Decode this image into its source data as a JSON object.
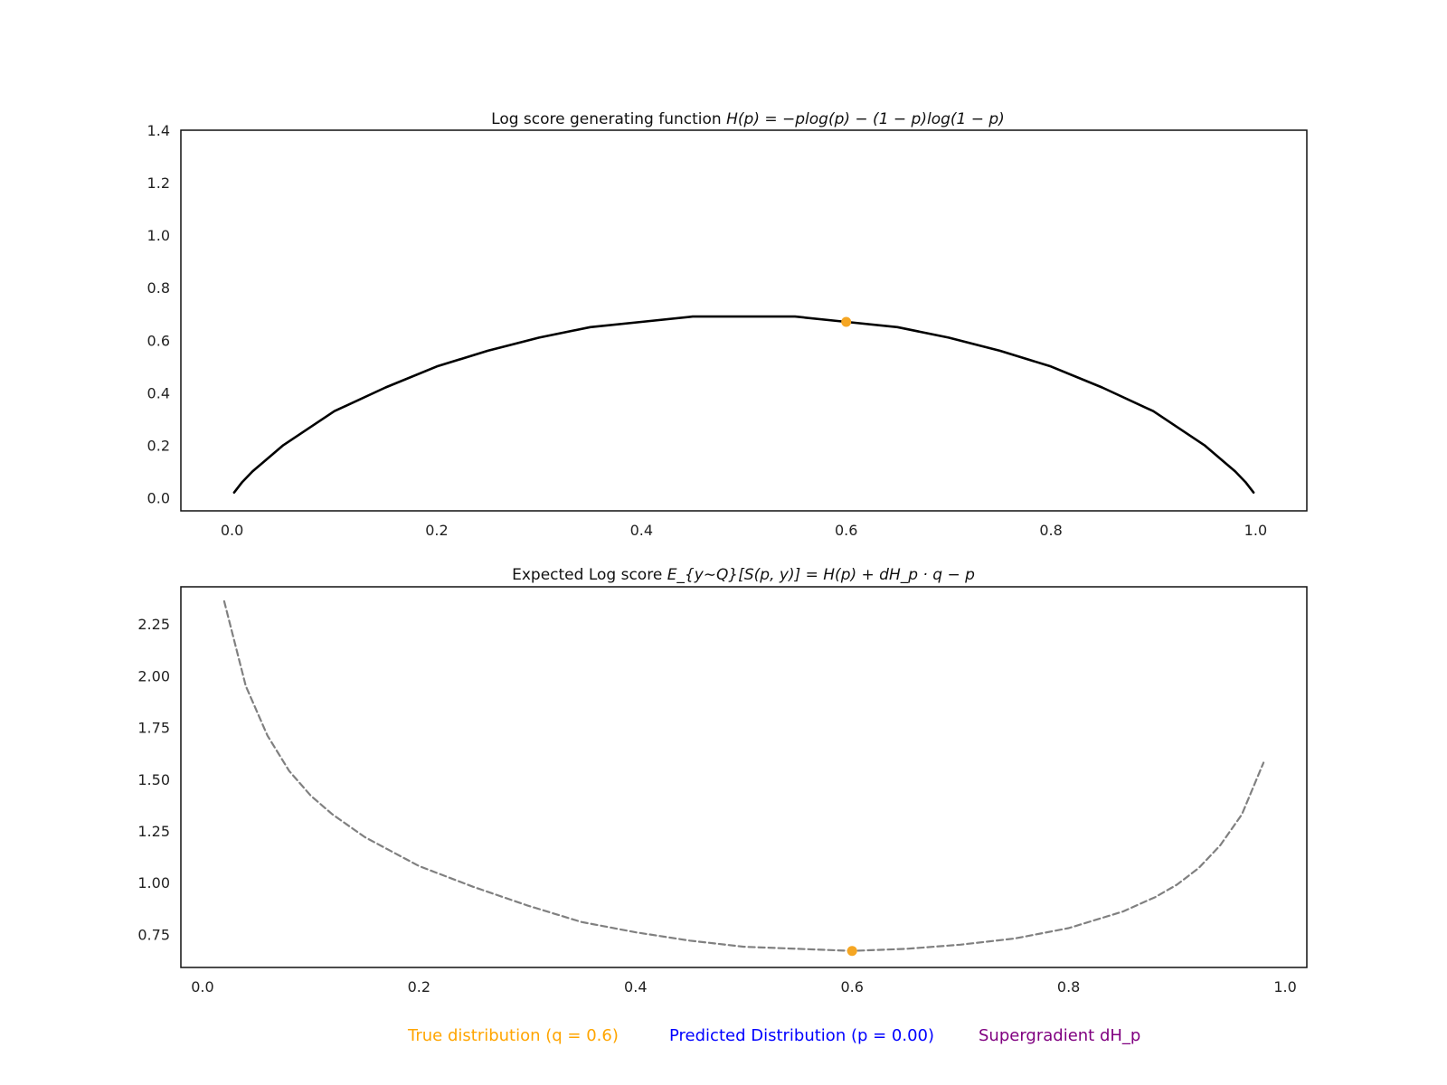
{
  "chart_data": [
    {
      "type": "line",
      "title_prefix": "Log score generating function ",
      "title_math": "H(p) = −plog(p) − (1 − p)log(1 − p)",
      "xlabel": "",
      "ylabel": "",
      "xlim": [
        -0.05,
        1.05
      ],
      "ylim": [
        -0.05,
        1.4
      ],
      "xticks": [
        "0.0",
        "0.2",
        "0.4",
        "0.6",
        "0.8",
        "1.0"
      ],
      "yticks": [
        "0.0",
        "0.2",
        "0.4",
        "0.6",
        "0.8",
        "1.0",
        "1.2",
        "1.4"
      ],
      "grid": false,
      "series": [
        {
          "style": "solid",
          "color": "#000000",
          "x": [
            0.002,
            0.01,
            0.02,
            0.05,
            0.1,
            0.15,
            0.2,
            0.25,
            0.3,
            0.35,
            0.4,
            0.45,
            0.5,
            0.55,
            0.6,
            0.65,
            0.7,
            0.75,
            0.8,
            0.85,
            0.9,
            0.95,
            0.98,
            0.99,
            0.998
          ],
          "y": [
            0.02,
            0.06,
            0.1,
            0.2,
            0.33,
            0.42,
            0.5,
            0.56,
            0.61,
            0.65,
            0.67,
            0.69,
            0.69,
            0.69,
            0.67,
            0.65,
            0.61,
            0.56,
            0.5,
            0.42,
            0.33,
            0.2,
            0.1,
            0.06,
            0.02
          ]
        }
      ],
      "points": [
        {
          "x": 0.6,
          "y": 0.67,
          "color": "#f5a623"
        }
      ]
    },
    {
      "type": "line",
      "title_prefix": "Expected Log score ",
      "title_math": "E_{y∼Q}[S(p, y)] = H(p) + dH_p · q − p",
      "xlabel": "",
      "ylabel": "",
      "xlim": [
        -0.02,
        1.02
      ],
      "ylim": [
        0.59,
        2.43
      ],
      "xticks": [
        "0.0",
        "0.2",
        "0.4",
        "0.6",
        "0.8",
        "1.0"
      ],
      "yticks": [
        "0.75",
        "1.00",
        "1.25",
        "1.50",
        "1.75",
        "2.00",
        "2.25"
      ],
      "grid": false,
      "series": [
        {
          "style": "dashed",
          "color": "#808080",
          "x": [
            0.02,
            0.04,
            0.06,
            0.08,
            0.1,
            0.12,
            0.15,
            0.2,
            0.25,
            0.3,
            0.35,
            0.4,
            0.45,
            0.5,
            0.55,
            0.6,
            0.65,
            0.7,
            0.75,
            0.8,
            0.85,
            0.88,
            0.9,
            0.92,
            0.94,
            0.96,
            0.98
          ],
          "y": [
            2.36,
            1.95,
            1.71,
            1.54,
            1.42,
            1.33,
            1.22,
            1.08,
            0.98,
            0.89,
            0.81,
            0.76,
            0.72,
            0.69,
            0.68,
            0.67,
            0.68,
            0.7,
            0.73,
            0.78,
            0.86,
            0.93,
            0.99,
            1.07,
            1.18,
            1.33,
            1.58
          ]
        }
      ],
      "points": [
        {
          "x": 0.6,
          "y": 0.67,
          "color": "#f5a623"
        }
      ]
    }
  ],
  "legend": {
    "placement": "bottom-center",
    "items": [
      {
        "label": "True distribution (q = 0.6)",
        "color": "#ffa500"
      },
      {
        "label": "Predicted Distribution (p = 0.00)",
        "color": "#0000ff"
      },
      {
        "label": "Supergradient dH_p",
        "color": "#800080"
      }
    ]
  }
}
